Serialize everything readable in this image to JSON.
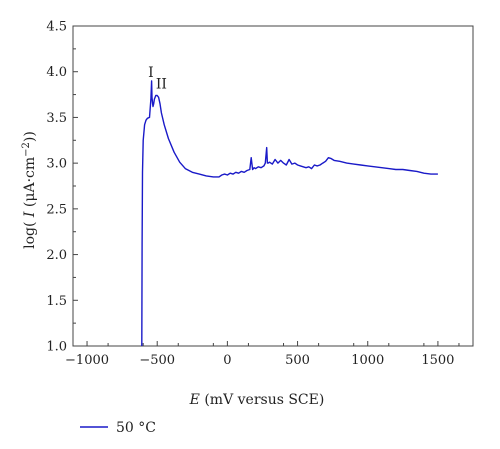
{
  "chart_data": {
    "type": "line",
    "title": "",
    "xlabel_var": "E",
    "xlabel_rest": " (mV versus SCE)",
    "ylabel_pre": "log( ",
    "ylabel_var": "I",
    "ylabel_unit": " (μA·cm",
    "ylabel_sup": "−2",
    "ylabel_post": "))",
    "xlim": [
      -1100,
      1750
    ],
    "ylim": [
      1.0,
      4.5
    ],
    "xticks": [
      -1000,
      -500,
      0,
      500,
      1000,
      1500
    ],
    "xtick_labels": [
      "−1000",
      "−500",
      "0",
      "500",
      "1000",
      "1500"
    ],
    "yticks": [
      1.0,
      1.5,
      2.0,
      2.5,
      3.0,
      3.5,
      4.0,
      4.5
    ],
    "ytick_labels": [
      "1.0",
      "1.5",
      "2.0",
      "2.5",
      "3.0",
      "3.5",
      "4.0",
      "4.5"
    ],
    "grid": false,
    "legend_position": "below-left",
    "annotations": [
      {
        "text": "I",
        "x": -545,
        "y": 3.9
      },
      {
        "text": "II",
        "x": -470,
        "y": 3.77
      }
    ],
    "series": [
      {
        "name": "50 °C",
        "color": "#1a1ac8",
        "x": [
          -610,
          -608,
          -605,
          -600,
          -590,
          -580,
          -570,
          -555,
          -545,
          -540,
          -537,
          -533,
          -530,
          -525,
          -520,
          -510,
          -500,
          -490,
          -480,
          -470,
          -450,
          -420,
          -380,
          -340,
          -300,
          -250,
          -200,
          -150,
          -100,
          -60,
          -40,
          -20,
          0,
          20,
          40,
          60,
          80,
          100,
          120,
          140,
          160,
          170,
          180,
          190,
          200,
          220,
          240,
          260,
          270,
          280,
          285,
          290,
          300,
          320,
          340,
          360,
          380,
          400,
          420,
          440,
          460,
          480,
          500,
          520,
          540,
          560,
          580,
          600,
          620,
          640,
          660,
          680,
          700,
          720,
          740,
          760,
          800,
          850,
          900,
          950,
          1000,
          1050,
          1100,
          1150,
          1200,
          1250,
          1300,
          1350,
          1400,
          1450,
          1500
        ],
        "y": [
          1.0,
          2.1,
          2.9,
          3.25,
          3.42,
          3.47,
          3.49,
          3.5,
          3.7,
          3.9,
          3.72,
          3.65,
          3.62,
          3.65,
          3.7,
          3.74,
          3.74,
          3.72,
          3.65,
          3.55,
          3.42,
          3.27,
          3.12,
          3.01,
          2.94,
          2.9,
          2.88,
          2.86,
          2.85,
          2.85,
          2.87,
          2.88,
          2.87,
          2.89,
          2.88,
          2.9,
          2.89,
          2.91,
          2.9,
          2.92,
          2.93,
          3.06,
          2.93,
          2.95,
          2.94,
          2.96,
          2.95,
          2.97,
          3.0,
          3.17,
          3.0,
          3.0,
          3.01,
          2.99,
          3.04,
          3.0,
          3.03,
          3.0,
          2.98,
          3.04,
          2.99,
          3.0,
          2.98,
          2.97,
          2.96,
          2.95,
          2.96,
          2.94,
          2.98,
          2.97,
          2.98,
          3.0,
          3.02,
          3.06,
          3.05,
          3.03,
          3.02,
          3.0,
          2.99,
          2.98,
          2.97,
          2.96,
          2.95,
          2.94,
          2.93,
          2.93,
          2.92,
          2.91,
          2.89,
          2.88,
          2.88
        ]
      }
    ],
    "legend_label": "50 °C"
  }
}
